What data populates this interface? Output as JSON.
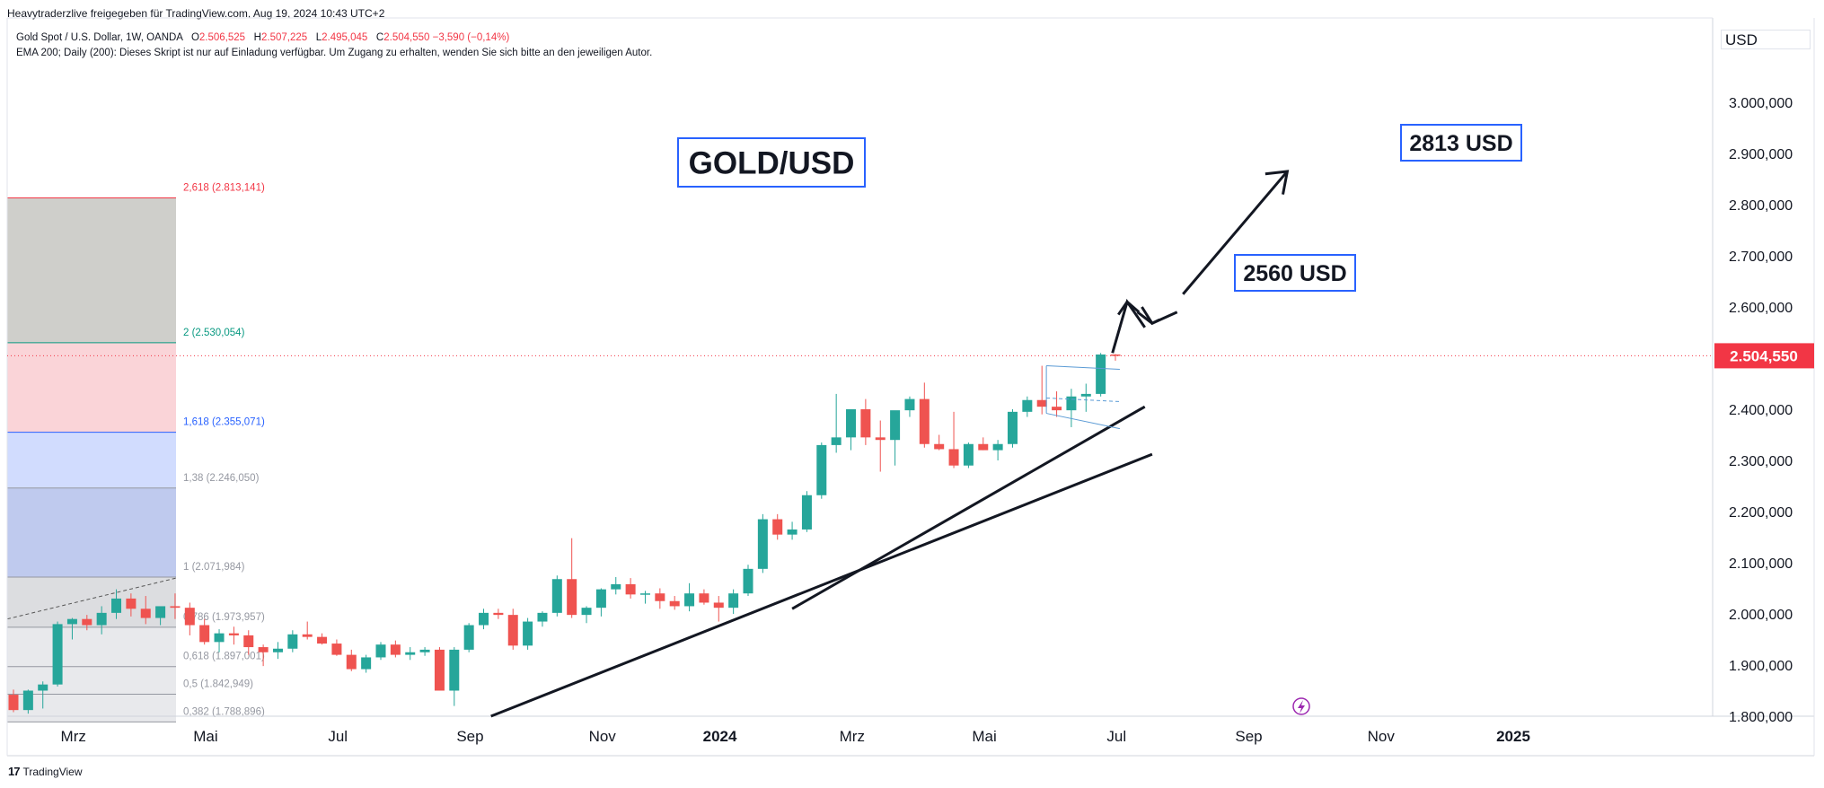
{
  "header": {
    "publisher": "Heavytraderzlive freigegeben für TradingView.com, Aug 19, 2024 10:43 UTC+2",
    "symbol": "Gold Spot / U.S. Dollar, 1W, OANDA",
    "o_label": "O",
    "o_value": "2.506,525",
    "h_label": "H",
    "h_value": "2.507,225",
    "l_label": "L",
    "l_value": "2.495,045",
    "c_label": "C",
    "c_value": "2.504,550",
    "change": "−3,590 (−0,14%)",
    "indicator": "EMA 200; Daily (200): Dieses Skript ist nur auf Einladung verfügbar. Um Zugang zu erhalten, wenden Sie sich bitte an den jeweiligen Autor."
  },
  "currency": "USD",
  "footer": {
    "logo": "17",
    "brand": "TradingView"
  },
  "annotations": {
    "title": "GOLD/USD",
    "target1": "2560 USD",
    "target2": "2813 USD"
  },
  "colors": {
    "up": "#26a69a",
    "down": "#ef5350",
    "price_label": "#f23645",
    "accent": "#2962ff"
  },
  "chart_data": {
    "type": "candlestick",
    "interval": "1W",
    "y_axis": {
      "min": 1780,
      "max": 3040,
      "ticks": [
        1800,
        1900,
        2000,
        2100,
        2200,
        2300,
        2400,
        2500,
        2600,
        2700,
        2800,
        2900,
        3000
      ],
      "tick_labels": [
        "1.800,000",
        "1.900,000",
        "2.000,000",
        "2.100,000",
        "2.200,000",
        "2.300,000",
        "2.400,000",
        "2.500,000",
        "2.600,000",
        "2.700,000",
        "2.800,000",
        "2.900,000",
        "3.000,000"
      ]
    },
    "x_axis": {
      "labels": [
        "Mrz",
        "Mai",
        "Jul",
        "Sep",
        "Nov",
        "2024",
        "Mrz",
        "Mai",
        "Jul",
        "Sep",
        "Nov",
        "2025"
      ],
      "label_weeks": [
        2,
        11,
        20,
        29,
        38,
        46,
        55,
        64,
        73,
        82,
        91,
        100
      ]
    },
    "last_price": 2504.55,
    "last_price_label": "2.504,550",
    "ohlc": [
      [
        1842,
        1852,
        1808,
        1812
      ],
      [
        1812,
        1852,
        1805,
        1850
      ],
      [
        1850,
        1868,
        1815,
        1862
      ],
      [
        1862,
        1985,
        1858,
        1980
      ],
      [
        1980,
        1992,
        1950,
        1990
      ],
      [
        1990,
        1998,
        1968,
        1978
      ],
      [
        1978,
        2015,
        1960,
        2002
      ],
      [
        2002,
        2048,
        1990,
        2030
      ],
      [
        2030,
        2040,
        1995,
        2010
      ],
      [
        2010,
        2035,
        1980,
        1992
      ],
      [
        1992,
        2012,
        1978,
        2015
      ],
      [
        2015,
        2040,
        1990,
        2012
      ],
      [
        2012,
        2022,
        1958,
        1978
      ],
      [
        1978,
        1990,
        1940,
        1945
      ],
      [
        1945,
        1970,
        1925,
        1962
      ],
      [
        1962,
        1975,
        1940,
        1958
      ],
      [
        1958,
        1968,
        1920,
        1935
      ],
      [
        1935,
        1940,
        1898,
        1925
      ],
      [
        1925,
        1945,
        1912,
        1932
      ],
      [
        1932,
        1968,
        1925,
        1960
      ],
      [
        1960,
        1985,
        1950,
        1955
      ],
      [
        1955,
        1962,
        1940,
        1942
      ],
      [
        1942,
        1950,
        1918,
        1920
      ],
      [
        1920,
        1930,
        1888,
        1892
      ],
      [
        1892,
        1920,
        1885,
        1915
      ],
      [
        1915,
        1945,
        1910,
        1940
      ],
      [
        1940,
        1948,
        1915,
        1920
      ],
      [
        1920,
        1935,
        1910,
        1925
      ],
      [
        1925,
        1935,
        1918,
        1930
      ],
      [
        1930,
        1935,
        1850,
        1850
      ],
      [
        1850,
        1935,
        1820,
        1930
      ],
      [
        1930,
        1982,
        1925,
        1978
      ],
      [
        1978,
        2010,
        1970,
        2002
      ],
      [
        2002,
        2010,
        1990,
        1998
      ],
      [
        1998,
        2010,
        1930,
        1938
      ],
      [
        1938,
        1992,
        1930,
        1985
      ],
      [
        1985,
        2005,
        1975,
        2002
      ],
      [
        2002,
        2075,
        1995,
        2068
      ],
      [
        2068,
        2148,
        1992,
        1998
      ],
      [
        1998,
        2015,
        1982,
        2012
      ],
      [
        2012,
        2050,
        1995,
        2048
      ],
      [
        2048,
        2072,
        2038,
        2058
      ],
      [
        2058,
        2070,
        2030,
        2038
      ],
      [
        2038,
        2045,
        2020,
        2040
      ],
      [
        2040,
        2050,
        2010,
        2025
      ],
      [
        2025,
        2035,
        2008,
        2015
      ],
      [
        2015,
        2060,
        2005,
        2040
      ],
      [
        2040,
        2048,
        2018,
        2022
      ],
      [
        2022,
        2035,
        1985,
        2012
      ],
      [
        2012,
        2048,
        2000,
        2040
      ],
      [
        2040,
        2096,
        2035,
        2088
      ],
      [
        2088,
        2195,
        2080,
        2185
      ],
      [
        2185,
        2195,
        2145,
        2155
      ],
      [
        2155,
        2180,
        2145,
        2165
      ],
      [
        2165,
        2240,
        2160,
        2232
      ],
      [
        2232,
        2335,
        2225,
        2330
      ],
      [
        2330,
        2430,
        2315,
        2345
      ],
      [
        2345,
        2400,
        2320,
        2400
      ],
      [
        2400,
        2420,
        2330,
        2345
      ],
      [
        2345,
        2378,
        2278,
        2340
      ],
      [
        2340,
        2390,
        2290,
        2398
      ],
      [
        2398,
        2425,
        2385,
        2420
      ],
      [
        2420,
        2452,
        2325,
        2332
      ],
      [
        2332,
        2350,
        2320,
        2322
      ],
      [
        2322,
        2395,
        2285,
        2290
      ],
      [
        2290,
        2335,
        2285,
        2332
      ],
      [
        2332,
        2345,
        2320,
        2320
      ],
      [
        2320,
        2340,
        2300,
        2332
      ],
      [
        2332,
        2400,
        2325,
        2395
      ],
      [
        2395,
        2425,
        2385,
        2418
      ],
      [
        2418,
        2485,
        2390,
        2405
      ],
      [
        2405,
        2435,
        2385,
        2398
      ],
      [
        2398,
        2440,
        2365,
        2425
      ],
      [
        2425,
        2450,
        2395,
        2430
      ],
      [
        2430,
        2510,
        2425,
        2507
      ],
      [
        2507,
        2508,
        2495,
        2505
      ]
    ],
    "fib_levels": [
      {
        "ratio": "2,618",
        "price": 2813.141,
        "label": "2,618 (2.813,141)"
      },
      {
        "ratio": "2",
        "price": 2530.054,
        "label": "2 (2.530,054)"
      },
      {
        "ratio": "1,618",
        "price": 2355.071,
        "label": "1,618 (2.355,071)"
      },
      {
        "ratio": "1,38",
        "price": 2246.05,
        "label": "1,38 (2.246,050)"
      },
      {
        "ratio": "1",
        "price": 2071.984,
        "label": "1 (2.071,984)"
      },
      {
        "ratio": "0,786",
        "price": 1973.957,
        "label": "0,786 (1.973,957)"
      },
      {
        "ratio": "0,618",
        "price": 1897.001,
        "label": "0,618 (1.897,001)"
      },
      {
        "ratio": "0,5",
        "price": 1842.949,
        "label": "0,5 (1.842,949)"
      },
      {
        "ratio": "0,382",
        "price": 1788.896,
        "label": "0,382 (1.788,896)"
      }
    ],
    "fib_colors": [
      "#f23645",
      "#089981",
      "#2962ff",
      "#9598a1",
      "#9598a1",
      "#9598a1",
      "#9598a1",
      "#9598a1",
      "#9598a1"
    ],
    "fib_fills": [
      "#cfcfcb",
      "#fad4d8",
      "#d1dcfe",
      "#bfcaee",
      "#dcdde0",
      "#e8e9ec",
      "#e8e9ec",
      "#e8e9ec"
    ],
    "trendlines": [
      {
        "from": [
          32.5,
          1800
        ],
        "to": [
          77.5,
          2312
        ]
      },
      {
        "from": [
          53,
          2010
        ],
        "to": [
          77,
          2405
        ]
      }
    ],
    "target_1": 2560,
    "target_2": 2813
  }
}
